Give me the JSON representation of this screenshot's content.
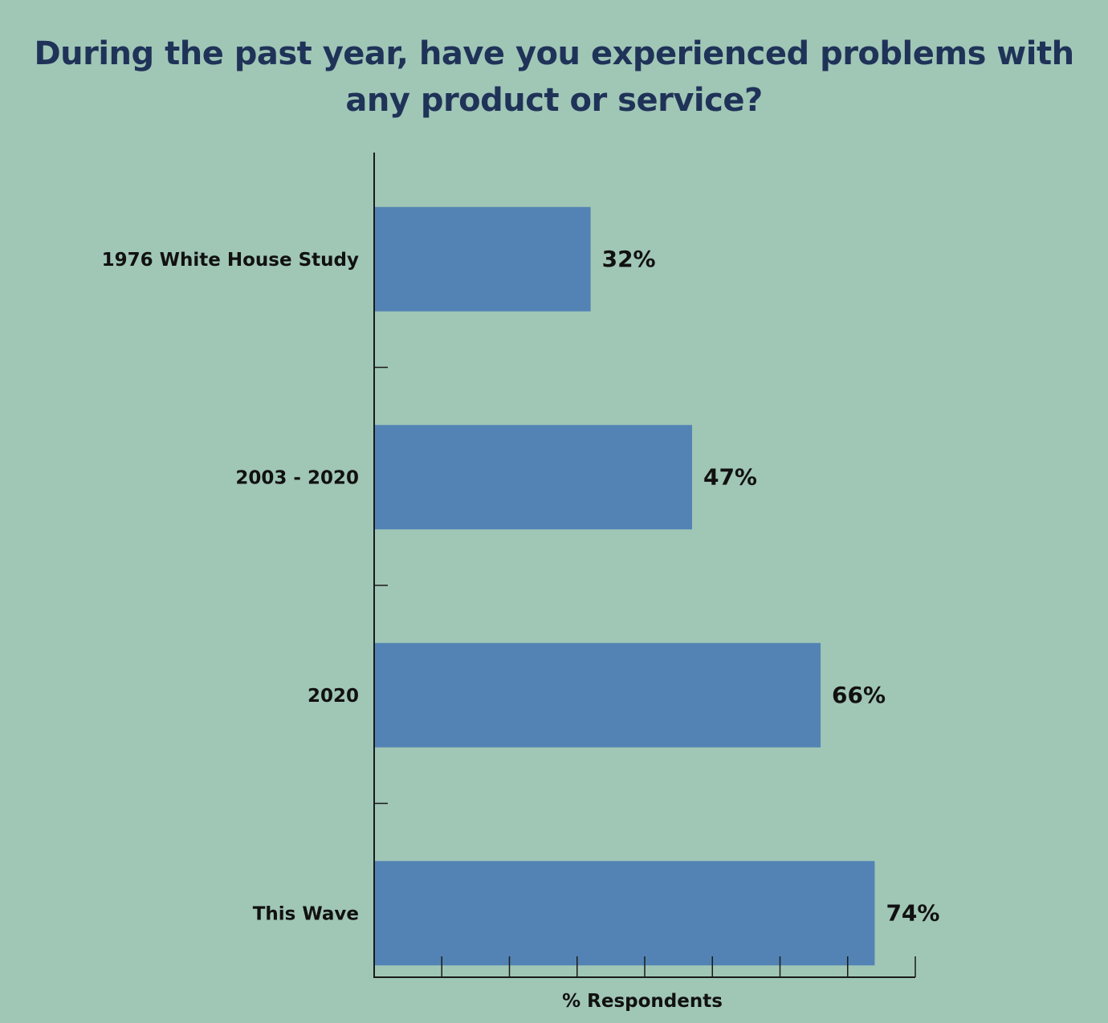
{
  "chart_data": {
    "type": "bar",
    "orientation": "horizontal",
    "title": "During the past year, have you experienced problems with any product or service?",
    "categories": [
      "1976 White House Study",
      "2003 - 2020",
      "2020",
      "This Wave"
    ],
    "values": [
      32,
      47,
      66,
      74
    ],
    "data_labels": [
      "32%",
      "47%",
      "66%",
      "74%"
    ],
    "xlabel": "% Respondents",
    "ylabel": "",
    "xlim": [
      0,
      80
    ],
    "grid": false,
    "colors": {
      "background": "#a0c6b6",
      "bar": "#5383b4",
      "title": "#1f3358",
      "axis": "#1a1a1a"
    }
  }
}
